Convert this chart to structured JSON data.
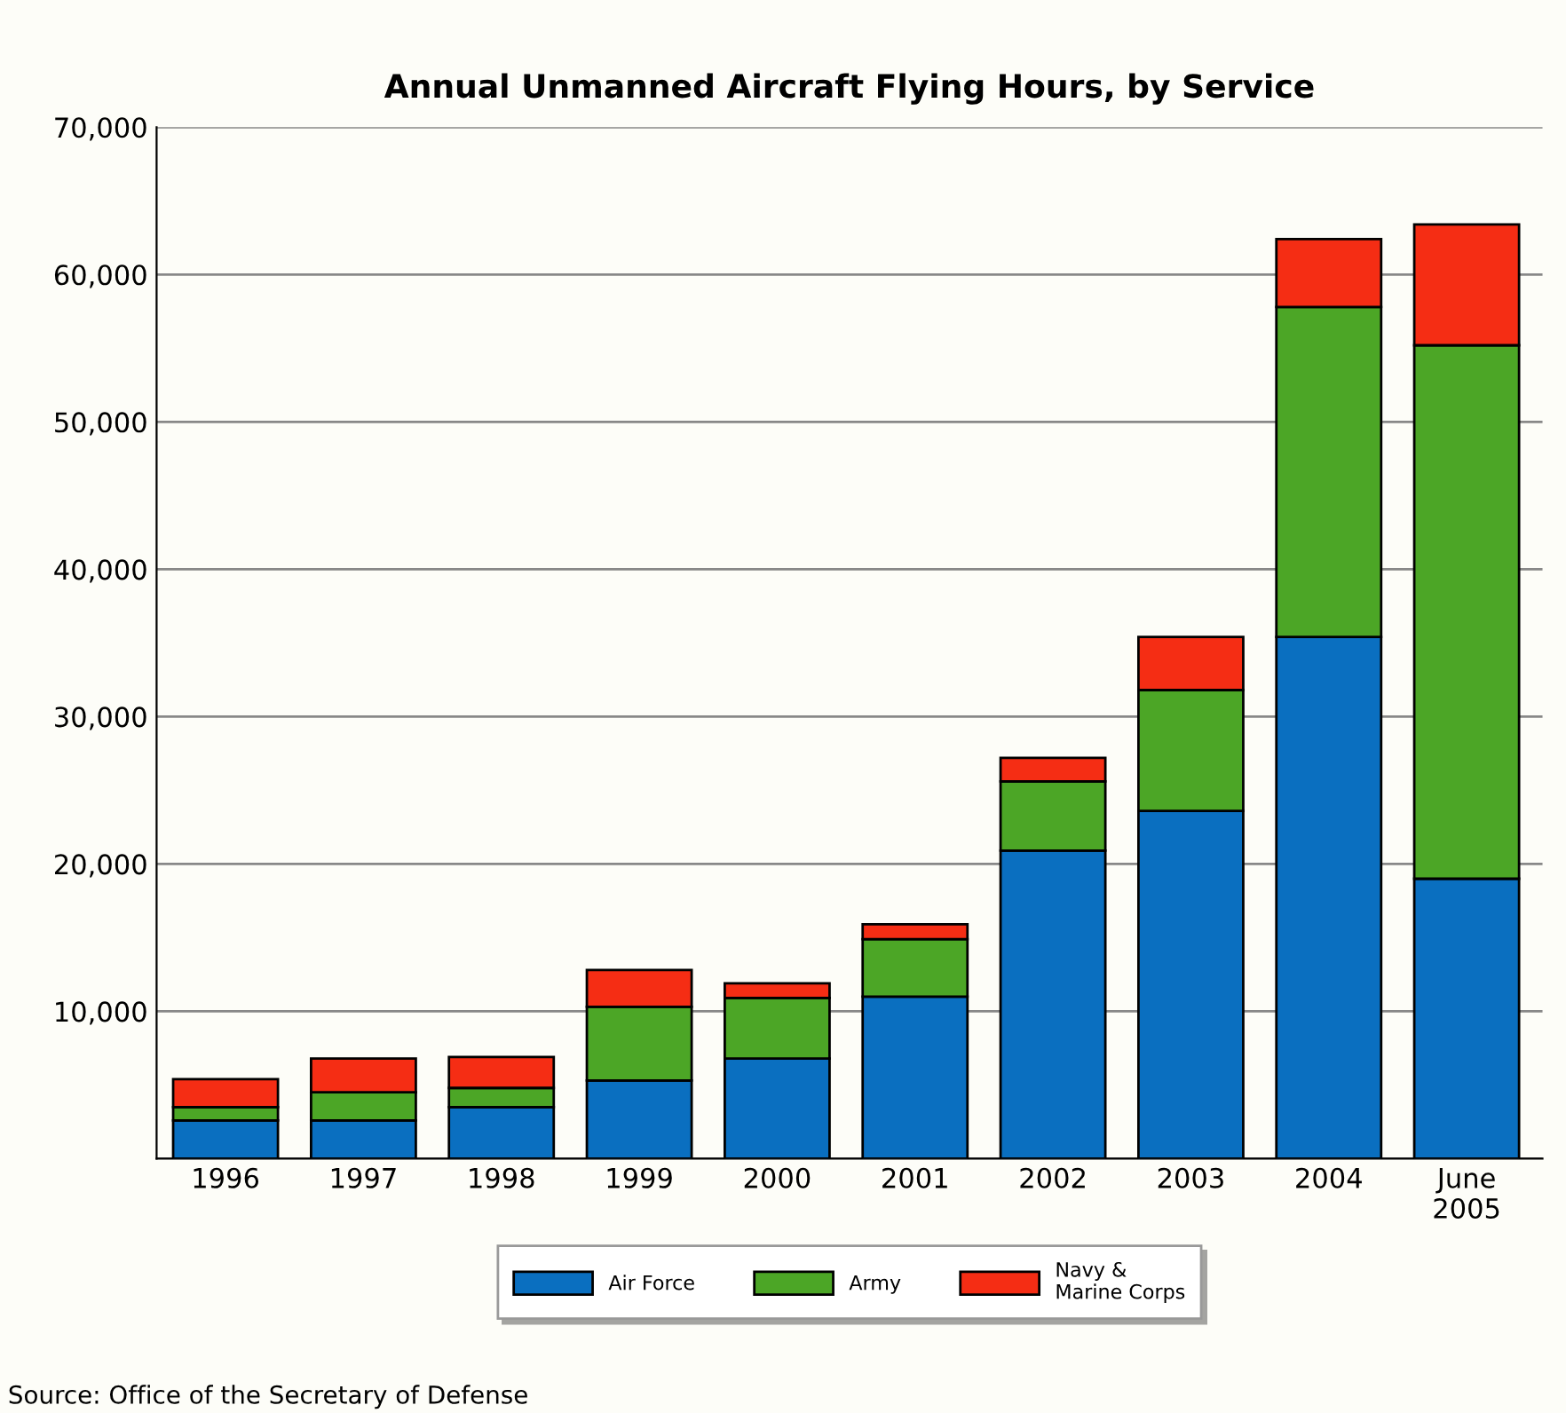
{
  "chart_data": {
    "type": "bar",
    "title": "Annual Unmanned Aircraft Flying Hours, by Service",
    "categories": [
      "1996",
      "1997",
      "1998",
      "1999",
      "2000",
      "2001",
      "2002",
      "2003",
      "2004",
      "June\n2005"
    ],
    "stacked": true,
    "series": [
      {
        "name": "Air Force",
        "color": "#0a6fc0",
        "values": [
          2600,
          2600,
          3500,
          5300,
          6800,
          11000,
          20900,
          23600,
          35400,
          19000
        ]
      },
      {
        "name": "Army",
        "color": "#4ca626",
        "values": [
          900,
          1900,
          1300,
          5000,
          4100,
          3900,
          4700,
          8200,
          22400,
          36200
        ]
      },
      {
        "name": "Navy &\nMarine Corps",
        "color": "#f52d14",
        "values": [
          1900,
          2300,
          2100,
          2500,
          1000,
          1000,
          1600,
          3600,
          4600,
          8200
        ]
      }
    ],
    "ylim": [
      0,
      70000
    ],
    "yticks": [
      {
        "value": 0,
        "label": null
      },
      {
        "value": 10000,
        "label": "10,000"
      },
      {
        "value": 20000,
        "label": "20,000"
      },
      {
        "value": 30000,
        "label": "30,000"
      },
      {
        "value": 40000,
        "label": "40,000"
      },
      {
        "value": 50000,
        "label": "50,000"
      },
      {
        "value": 60000,
        "label": "60,000"
      },
      {
        "value": 70000,
        "label": "70,000"
      }
    ],
    "grid": "y",
    "legend": "bottom",
    "annotations": [
      "Source: Office of the Secretary of Defense"
    ]
  }
}
